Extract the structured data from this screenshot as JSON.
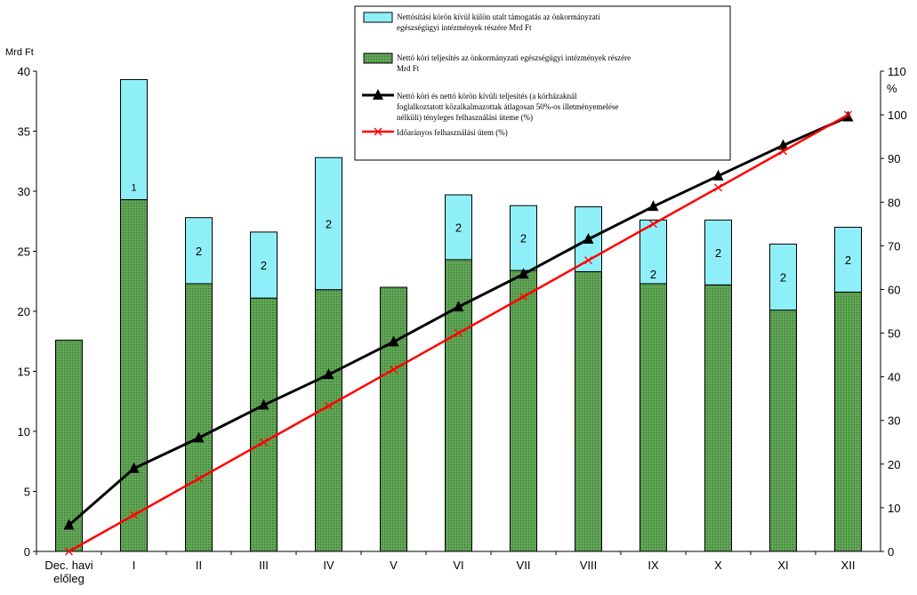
{
  "chart_data": {
    "type": "bar",
    "y_left_unit": "Mrd Ft",
    "y_right_unit": "%",
    "y_left_ticks": [
      "0",
      "5",
      "10",
      "15",
      "20",
      "25",
      "30",
      "35",
      "40"
    ],
    "y_right_ticks": [
      "0",
      "10",
      "20",
      "30",
      "40",
      "50",
      "60",
      "70",
      "80",
      "90",
      "100",
      "110"
    ],
    "ylim_left": [
      0,
      40
    ],
    "ylim_right": [
      0,
      110
    ],
    "categories": [
      "Dec. havi előleg",
      "I",
      "II",
      "III",
      "IV",
      "V",
      "VI",
      "VII",
      "VIII",
      "IX",
      "X",
      "XI",
      "XII"
    ],
    "stacked_series": [
      {
        "name": "Nettó köri teljesítés az önkormányzati egészségügyi intézmények részére Mrd Ft",
        "color": "#5A9E50",
        "values": [
          17.6,
          29.3,
          22.3,
          21.1,
          21.8,
          22.0,
          24.3,
          23.4,
          23.3,
          22.3,
          22.2,
          20.1,
          21.6
        ]
      },
      {
        "name": "Nettósítási körön kívül külön utalt támogatás az önkormányzati egészségügyi intézmények részére Mrd Ft",
        "color": "#8FEFF8",
        "values": [
          0,
          10.0,
          5.5,
          5.5,
          11.0,
          0,
          5.4,
          5.4,
          5.4,
          5.3,
          5.4,
          5.5,
          5.4
        ]
      }
    ],
    "bar_labels": [
      "",
      "1",
      "2",
      "2",
      "2",
      "",
      "2",
      "2",
      "2",
      "2",
      "2",
      "2",
      "2"
    ],
    "line_series": [
      {
        "name": "Nettó köri és nettó körön kívüli teljesítés (a kórházaknál foglalkoztatott közalkalmazottak átlagosan 50%-os illetményemelése nélküli) tényleges felhasználási üteme (%)",
        "color": "#000000",
        "marker": "triangle",
        "values": [
          6,
          19,
          26,
          33.5,
          40.5,
          48,
          56,
          63.5,
          71.5,
          79,
          86,
          93,
          99.5
        ]
      },
      {
        "name": "Időarányos felhasználási ütem (%)",
        "color": "#FF0000",
        "marker": "x",
        "values": [
          0,
          8.33,
          16.67,
          25,
          33.33,
          41.67,
          50,
          58.33,
          66.67,
          75,
          83.33,
          91.67,
          100
        ]
      }
    ],
    "grid": false,
    "legend_position": "top-right"
  }
}
